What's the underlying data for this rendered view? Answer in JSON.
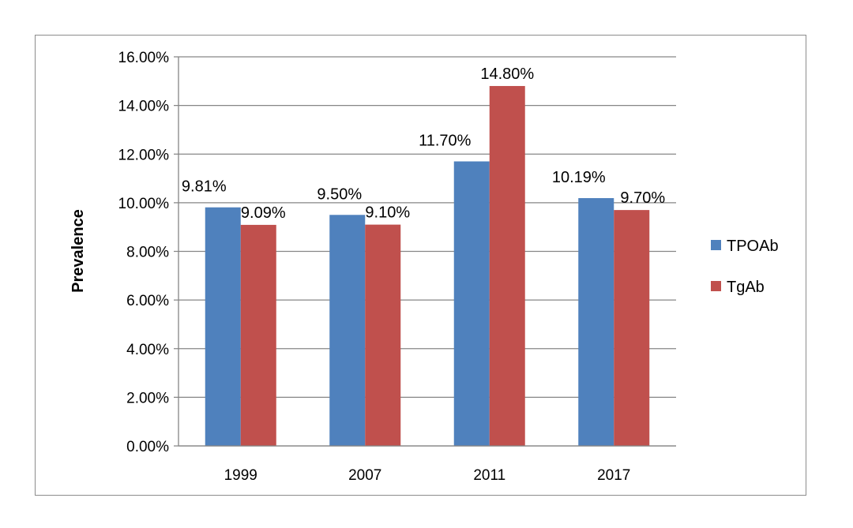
{
  "chart_data": {
    "type": "bar",
    "title": "",
    "xlabel": "",
    "ylabel": "Prevalence",
    "categories": [
      "1999",
      "2007",
      "2011",
      "2017"
    ],
    "series": [
      {
        "name": "TPOAb",
        "color": "#4f81bd",
        "values": [
          9.81,
          9.5,
          11.7,
          10.19
        ],
        "labels": [
          "9.81%",
          "9.50%",
          "11.70%",
          "10.19%"
        ]
      },
      {
        "name": "TgAb",
        "color": "#c0504d",
        "values": [
          9.09,
          9.1,
          14.8,
          9.7
        ],
        "labels": [
          "9.09%",
          "9.10%",
          "14.80%",
          "9.70%"
        ]
      }
    ],
    "ylim": [
      0,
      16
    ],
    "yticks": [
      0,
      2,
      4,
      6,
      8,
      10,
      12,
      14,
      16
    ],
    "ytick_labels": [
      "0.00%",
      "2.00%",
      "4.00%",
      "6.00%",
      "8.00%",
      "10.00%",
      "12.00%",
      "14.00%",
      "16.00%"
    ],
    "grid": true,
    "legend_position": "right"
  }
}
